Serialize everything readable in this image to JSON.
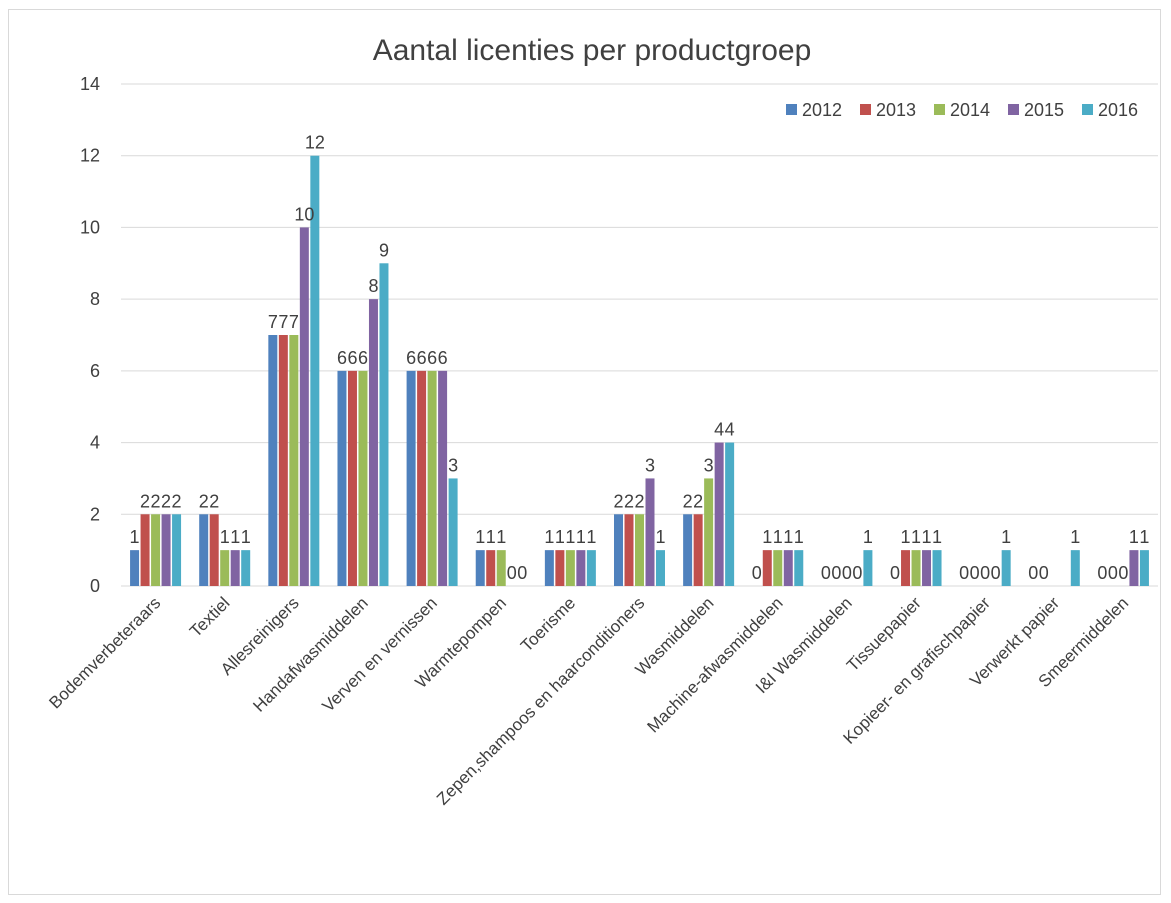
{
  "chart_data": {
    "type": "bar",
    "title": "Aantal licenties per productgroep",
    "xlabel": "",
    "ylabel": "",
    "ylim": [
      0,
      14
    ],
    "yticks": [
      "0",
      "2",
      "4",
      "6",
      "8",
      "10",
      "12",
      "14"
    ],
    "grid": true,
    "legend_position": "top-right",
    "categories": [
      "Bodemverbeteraars",
      "Textiel",
      "Allesreinigers",
      "Handafwasmiddelen",
      "Verven en vernissen",
      "Warmtepompen",
      "Toerisme",
      "Zepen,shampoos en haarconditioners",
      "Wasmiddelen",
      "Machine-afwasmiddelen",
      "I&I Wasmiddelen",
      "Tissuepapier",
      "Kopieer- en grafischpapier",
      "Verwerkt papier",
      "Smeermiddelen"
    ],
    "series": [
      {
        "name": "2012",
        "color": "#4f81bd",
        "values": [
          1,
          2,
          7,
          6,
          6,
          1,
          1,
          2,
          2,
          0,
          0,
          0,
          0,
          0,
          0
        ]
      },
      {
        "name": "2013",
        "color": "#c0504d",
        "values": [
          2,
          2,
          7,
          6,
          6,
          1,
          1,
          2,
          2,
          1,
          0,
          1,
          0,
          0,
          0
        ]
      },
      {
        "name": "2014",
        "color": "#9bbb59",
        "values": [
          2,
          1,
          7,
          6,
          6,
          1,
          1,
          2,
          3,
          1,
          0,
          1,
          0,
          null,
          0
        ]
      },
      {
        "name": "2015",
        "color": "#8064a2",
        "values": [
          2,
          1,
          10,
          8,
          6,
          0,
          1,
          3,
          4,
          1,
          0,
          1,
          0,
          null,
          1
        ]
      },
      {
        "name": "2016",
        "color": "#4bacc6",
        "values": [
          2,
          1,
          12,
          9,
          3,
          0,
          1,
          1,
          4,
          1,
          1,
          1,
          1,
          1,
          1
        ]
      }
    ]
  }
}
